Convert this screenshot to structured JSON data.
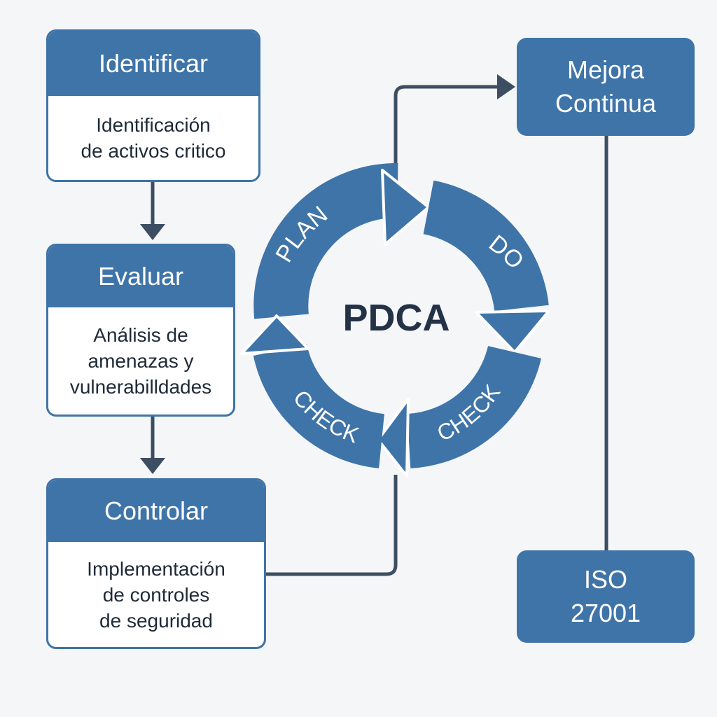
{
  "steps": {
    "identificar": {
      "title": "Identificar",
      "lines": [
        "Identificación",
        "de activos critico"
      ]
    },
    "evaluar": {
      "title": "Evaluar",
      "lines": [
        "Análisis de",
        "amenazas y",
        "vulnerabilldades"
      ]
    },
    "controlar": {
      "title": "Controlar",
      "lines": [
        "Implementación",
        "de controles",
        "de seguridad"
      ]
    }
  },
  "mejora": {
    "lines": [
      "Mejora",
      "Continua"
    ]
  },
  "iso": {
    "lines": [
      "ISO",
      "27001"
    ]
  },
  "pdca": {
    "center_label": "PDCA",
    "segments": {
      "plan": "PLAN",
      "do": "DO",
      "check_right": "CHECK",
      "check_left": "CHECK"
    }
  },
  "colors": {
    "primary": "#3f74a8",
    "connector": "#3d4e63",
    "background": "#f5f6f8",
    "text_dark": "#1f2a38"
  }
}
